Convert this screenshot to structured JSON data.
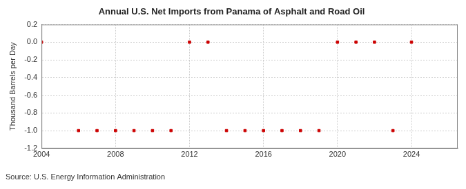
{
  "chart_data": {
    "type": "scatter",
    "title": "Annual U.S. Net Imports from Panama of Asphalt and Road Oil",
    "y_label": "Thousand Barrels per Day",
    "annotation": "Source: U.S. Energy Information Administration",
    "x": [
      2004,
      2006,
      2007,
      2008,
      2009,
      2010,
      2011,
      2012,
      2013,
      2014,
      2015,
      2016,
      2017,
      2018,
      2019,
      2020,
      2021,
      2022,
      2023,
      2024
    ],
    "values": [
      0,
      -1,
      -1,
      -1,
      -1,
      -1,
      -1,
      0,
      0,
      -1,
      -1,
      -1,
      -1,
      -1,
      -1,
      0,
      0,
      0,
      -1,
      0
    ],
    "color": "#cc0000",
    "marker": "square",
    "xlim": [
      2004,
      2026.5
    ],
    "xticks": [
      2004,
      2008,
      2012,
      2016,
      2020,
      2024
    ],
    "ylim": [
      -1.2,
      0.2
    ],
    "yticks": [
      -1.2,
      {
        "value": -1,
        "label": "-1.0"
      },
      -0.8,
      -0.6,
      -0.4,
      -0.2,
      {
        "value": 0,
        "label": "0.0"
      },
      0.2
    ],
    "grid": true
  }
}
